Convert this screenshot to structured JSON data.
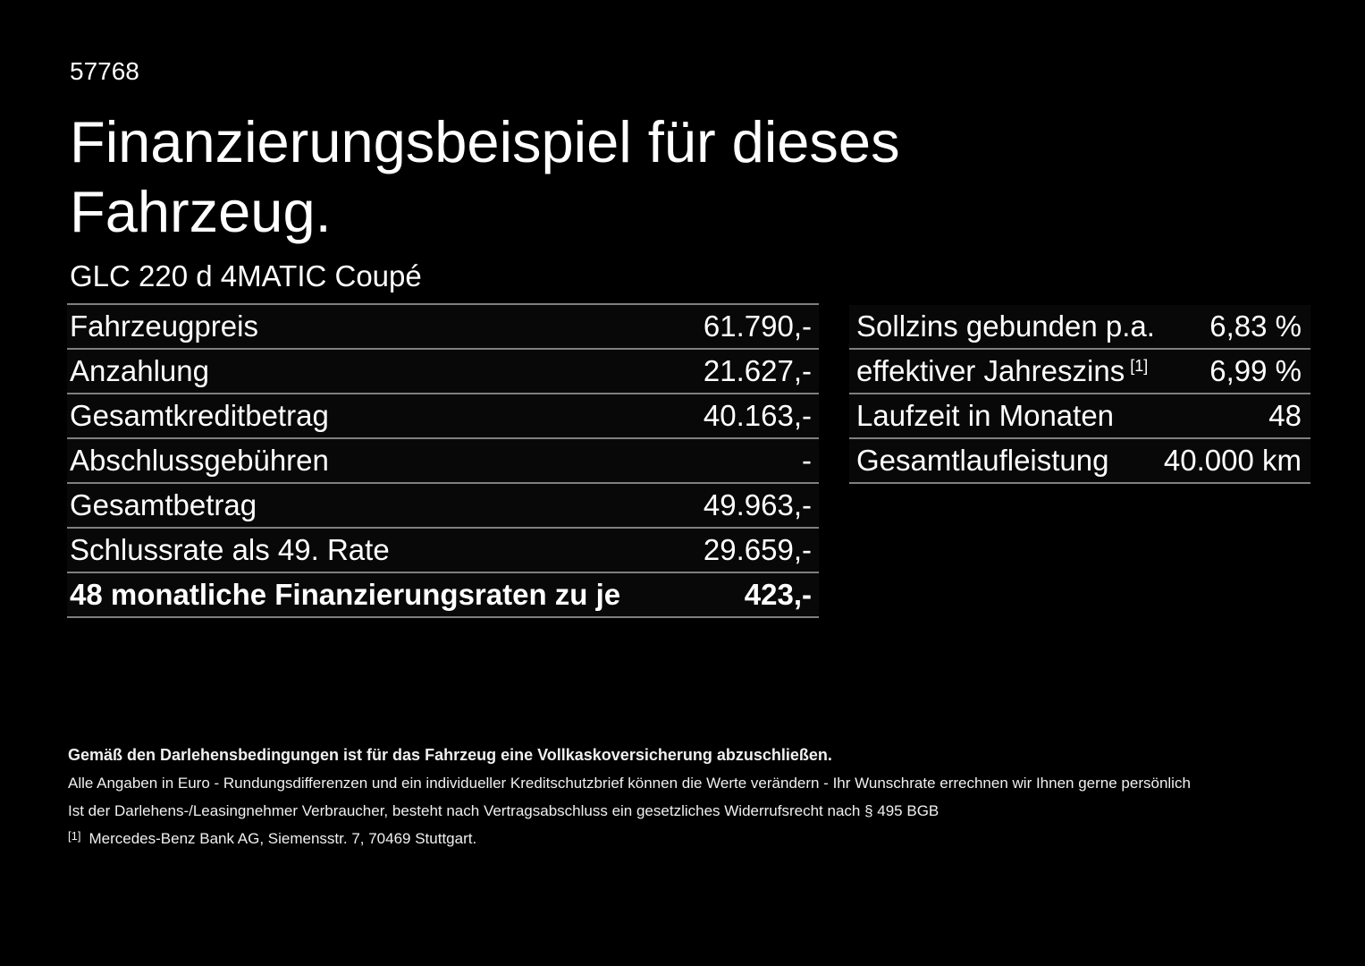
{
  "page": {
    "id_number": "57768",
    "title": "Finanzierungsbeispiel für dieses Fahrzeug.",
    "vehicle_model": "GLC 220 d 4MATIC Coupé"
  },
  "left_table": {
    "rows": [
      {
        "label": "Fahrzeugpreis",
        "value": "61.790,-"
      },
      {
        "label": "Anzahlung",
        "value": "21.627,-"
      },
      {
        "label": "Gesamtkreditbetrag",
        "value": "40.163,-"
      },
      {
        "label": "Abschlussgebühren",
        "value": "-"
      },
      {
        "label": "Gesamtbetrag",
        "value": "49.963,-"
      },
      {
        "label": "Schlussrate als 49. Rate",
        "value": "29.659,-"
      },
      {
        "label": "48 monatliche Finanzierungsraten zu je",
        "value": "423,-"
      }
    ]
  },
  "right_table": {
    "rows": [
      {
        "label": "Sollzins gebunden p.a.",
        "value": "6,83 %"
      },
      {
        "label": "effektiver Jahreszins",
        "superscript": "[1]",
        "value": "6,99 %"
      },
      {
        "label": "Laufzeit in Monaten",
        "value": "48"
      },
      {
        "label": "Gesamtlaufleistung",
        "value": "40.000 km"
      }
    ]
  },
  "footer": {
    "line1": "Gemäß den Darlehensbedingungen ist für das Fahrzeug eine Vollkaskoversicherung abzuschließen.",
    "line2": "Alle Angaben in Euro - Rundungsdifferenzen und ein individueller Kreditschutzbrief können die Werte verändern - Ihr Wunschrate errechnen wir Ihnen gerne persönlich",
    "line3": "Ist der Darlehens-/Leasingnehmer Verbraucher, besteht nach Vertragsabschluss ein gesetzliches Widerrufsrecht nach § 495 BGB",
    "footnote_marker": "[1]",
    "footnote_text": "Mercedes-Benz Bank AG, Siemensstr. 7, 70469 Stuttgart."
  },
  "colors": {
    "background": "#000000",
    "text": "#ffffff",
    "divider": "#7f7f7f"
  }
}
